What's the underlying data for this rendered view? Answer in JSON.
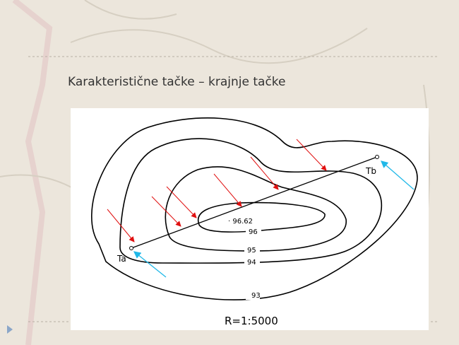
{
  "slide": {
    "title": "Karakteristične tačke – krajnje tačke"
  },
  "figure": {
    "points": {
      "a": "Ta",
      "b": "Tb"
    },
    "peak": "· 96.62",
    "contours": [
      "93",
      "94",
      "95",
      "96"
    ],
    "scale": "R=1:5000"
  }
}
